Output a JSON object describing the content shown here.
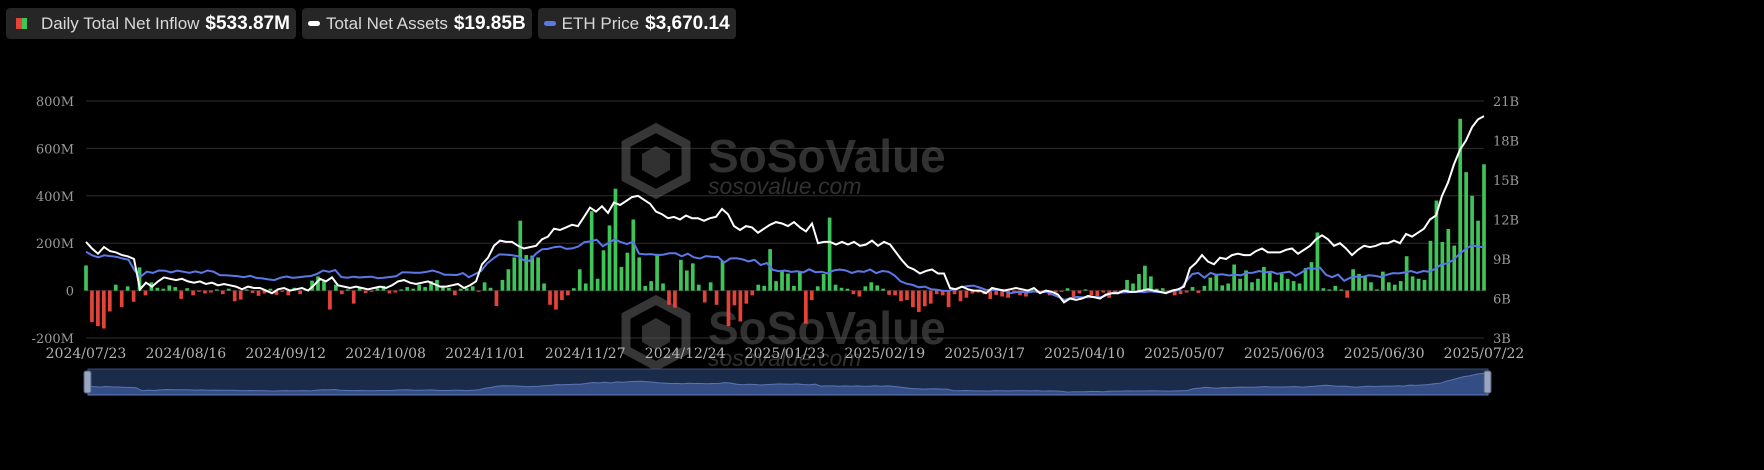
{
  "legend": [
    {
      "name": "Daily Total Net Inflow",
      "value": "$533.87M"
    },
    {
      "name": "Total Net Assets",
      "value": "$19.85B"
    },
    {
      "name": "ETH Price",
      "value": "$3,670.14"
    }
  ],
  "watermark": {
    "brand": "SoSoValue",
    "url": "sosovalue.com"
  },
  "colors": {
    "inflow_pos": "#3ec458",
    "inflow_neg": "#e5433a",
    "assets": "#ffffff",
    "price": "#5b78e6",
    "grid": "#2e2e2e",
    "navigator": "#1b2b4a"
  },
  "chart_data": {
    "type": "bar",
    "left_axis": {
      "ticks": [
        "800M",
        "600M",
        "400M",
        "200M",
        "0",
        "-200M"
      ],
      "ylim": [
        -200,
        800
      ],
      "unit": "M"
    },
    "right_axis": {
      "ticks": [
        "21B",
        "18B",
        "15B",
        "12B",
        "9B",
        "6B",
        "3B"
      ],
      "ylim": [
        3,
        21
      ],
      "unit": "B"
    },
    "x_ticks": [
      "2024/07/23",
      "2024/08/16",
      "2024/09/12",
      "2024/10/08",
      "2024/11/01",
      "2024/11/27",
      "2024/12/24",
      "2025/01/23",
      "2025/02/19",
      "2025/03/17",
      "2025/04/10",
      "2025/05/07",
      "2025/06/03",
      "2025/06/30",
      "2025/07/22"
    ],
    "grid": true,
    "series": [
      {
        "name": "Daily Total Net Inflow",
        "type": "bar",
        "unit": "M USD",
        "values": [
          106,
          -133,
          -150,
          -160,
          -88,
          25,
          -70,
          18,
          -47,
          98,
          -20,
          35,
          12,
          8,
          22,
          15,
          -35,
          10,
          -20,
          -5,
          -12,
          -8,
          5,
          -15,
          8,
          -45,
          -38,
          5,
          -10,
          -22,
          -12,
          8,
          -18,
          -5,
          -20,
          12,
          -15,
          5,
          42,
          60,
          40,
          -80,
          25,
          -15,
          5,
          -55,
          12,
          -10,
          -5,
          10,
          20,
          -12,
          -8,
          5,
          15,
          8,
          25,
          15,
          40,
          45,
          20,
          12,
          -20,
          8,
          10,
          18,
          -5,
          35,
          12,
          -65,
          45,
          90,
          140,
          295,
          150,
          148,
          140,
          30,
          -60,
          -80,
          -40,
          -20,
          10,
          90,
          30,
          335,
          50,
          170,
          275,
          430,
          100,
          160,
          300,
          140,
          20,
          40,
          155,
          30,
          -60,
          -72,
          130,
          85,
          115,
          25,
          -50,
          35,
          -60,
          125,
          -150,
          -62,
          -130,
          -55,
          -20,
          25,
          20,
          175,
          40,
          85,
          72,
          20,
          80,
          -140,
          -40,
          18,
          70,
          308,
          25,
          12,
          8,
          -15,
          -25,
          18,
          35,
          22,
          8,
          -18,
          -20,
          -45,
          -40,
          -70,
          -90,
          -66,
          -55,
          -15,
          -20,
          -70,
          -15,
          -45,
          -30,
          -12,
          -8,
          -15,
          -35,
          -18,
          -25,
          -30,
          -12,
          -20,
          -25,
          5,
          -10,
          -8,
          -20,
          -8,
          -5,
          10,
          -30,
          -12,
          5,
          -20,
          -25,
          -8,
          -30,
          -10,
          -12,
          45,
          30,
          70,
          105,
          60,
          8,
          10,
          -8,
          -20,
          -15,
          -8,
          15,
          -10,
          20,
          55,
          70,
          22,
          30,
          110,
          50,
          85,
          35,
          50,
          100,
          75,
          35,
          70,
          50,
          40,
          30,
          95,
          120,
          245,
          10,
          5,
          20,
          5,
          -30,
          90,
          70,
          60,
          35,
          5,
          80,
          35,
          25,
          40,
          145,
          60,
          50,
          45,
          210,
          380,
          205,
          260,
          190,
          725,
          500,
          400,
          295,
          533
        ]
      },
      {
        "name": "Total Net Assets",
        "type": "line",
        "unit": "B USD",
        "values": [
          10.3,
          9.8,
          9.4,
          9.9,
          9.6,
          9.5,
          9.3,
          9.2,
          9.0,
          6.7,
          7.2,
          6.9,
          7.3,
          7.6,
          7.5,
          7.4,
          7.5,
          7.3,
          7.2,
          7.3,
          7.1,
          7.2,
          7.0,
          7.1,
          7.0,
          6.9,
          6.7,
          6.9,
          6.8,
          6.8,
          6.6,
          6.4,
          6.7,
          6.8,
          6.6,
          6.7,
          6.8,
          6.6,
          7.0,
          7.5,
          7.3,
          7.6,
          7.0,
          6.9,
          6.8,
          6.9,
          6.8,
          6.7,
          6.8,
          6.9,
          6.8,
          7.0,
          7.3,
          7.4,
          7.2,
          7.1,
          7.2,
          7.3,
          7.1,
          6.9,
          6.9,
          7.0,
          7.1,
          6.8,
          7.0,
          7.3,
          8.6,
          9.1,
          10.0,
          10.4,
          10.3,
          10.3,
          10.0,
          9.8,
          9.9,
          10.0,
          10.5,
          10.7,
          11.3,
          11.2,
          11.4,
          11.6,
          11.5,
          12.2,
          12.9,
          12.6,
          13.0,
          12.5,
          13.3,
          13.1,
          13.4,
          13.7,
          13.8,
          13.5,
          13.2,
          12.6,
          12.4,
          12.1,
          12.2,
          12.0,
          12.3,
          12.1,
          12.1,
          11.9,
          12.1,
          12.2,
          12.8,
          12.4,
          11.5,
          11.2,
          11.5,
          11.4,
          11.0,
          11.3,
          11.6,
          11.8,
          11.7,
          11.5,
          11.8,
          11.4,
          11.1,
          11.7,
          10.2,
          10.3,
          10.3,
          10.1,
          10.3,
          10.1,
          10.3,
          10.0,
          10.1,
          10.4,
          10.0,
          10.3,
          10.1,
          9.5,
          8.9,
          8.4,
          8.2,
          7.9,
          8.1,
          8.2,
          7.9,
          7.9,
          6.8,
          6.7,
          6.9,
          6.7,
          6.6,
          6.6,
          6.4,
          6.8,
          6.7,
          6.6,
          6.7,
          6.8,
          6.7,
          6.6,
          6.8,
          6.4,
          6.6,
          6.5,
          6.3,
          5.7,
          6.0,
          5.9,
          6.0,
          6.2,
          6.1,
          6.0,
          6.3,
          6.4,
          6.4,
          6.6,
          6.5,
          6.5,
          6.6,
          6.7,
          6.6,
          6.5,
          6.4,
          6.6,
          6.7,
          6.9,
          8.3,
          8.7,
          9.3,
          8.8,
          8.6,
          9.1,
          9.0,
          9.3,
          9.4,
          9.3,
          9.3,
          9.6,
          9.8,
          9.5,
          9.5,
          9.5,
          9.7,
          9.8,
          9.4,
          9.7,
          10.0,
          10.5,
          10.8,
          10.5,
          10.0,
          10.2,
          9.8,
          9.3,
          9.7,
          10.0,
          9.9,
          10.0,
          10.2,
          10.2,
          10.4,
          10.2,
          10.9,
          10.7,
          11.0,
          11.3,
          12.0,
          12.3,
          13.8,
          14.8,
          16.2,
          17.3,
          18.0,
          19.0,
          19.6,
          19.85
        ]
      },
      {
        "name": "ETH Price",
        "type": "line",
        "unit": "USD",
        "values": [
          3480,
          3330,
          3250,
          3330,
          3300,
          3270,
          3200,
          3150,
          2700,
          2450,
          2650,
          2600,
          2700,
          2690,
          2620,
          2690,
          2650,
          2600,
          2660,
          2600,
          2700,
          2650,
          2510,
          2500,
          2480,
          2460,
          2420,
          2480,
          2390,
          2370,
          2330,
          2300,
          2400,
          2450,
          2390,
          2420,
          2450,
          2470,
          2560,
          2700,
          2640,
          2720,
          2430,
          2400,
          2440,
          2410,
          2430,
          2440,
          2380,
          2400,
          2430,
          2460,
          2620,
          2620,
          2610,
          2610,
          2640,
          2700,
          2630,
          2520,
          2520,
          2510,
          2590,
          2420,
          2550,
          2680,
          3000,
          3200,
          3370,
          3360,
          3340,
          3300,
          3130,
          3100,
          3400,
          3580,
          3600,
          3670,
          3700,
          3600,
          3620,
          3700,
          3880,
          3910,
          3980,
          3710,
          3850,
          4000,
          3880,
          3800,
          3900,
          3400,
          3370,
          3380,
          3340,
          3360,
          3420,
          3420,
          3290,
          3400,
          3250,
          3200,
          3300,
          3270,
          3260,
          3030,
          3200,
          3210,
          3160,
          3080,
          3140,
          2930,
          3010,
          2730,
          2670,
          2700,
          2640,
          2670,
          2620,
          2750,
          2630,
          2650,
          2580,
          2700,
          2740,
          2700,
          2600,
          2670,
          2640,
          2740,
          2590,
          2680,
          2650,
          2500,
          2250,
          2150,
          2100,
          2000,
          2030,
          1920,
          1900,
          1850,
          1860,
          1930,
          2010,
          2050,
          2070,
          1990,
          1900,
          1890,
          1900,
          1880,
          1750,
          1800,
          1810,
          1790,
          1830,
          1800,
          1810,
          1700,
          1600,
          1470,
          1550,
          1600,
          1580,
          1590,
          1600,
          1590,
          1680,
          1780,
          1780,
          1790,
          1800,
          1820,
          1800,
          1830,
          1810,
          1800,
          1790,
          1850,
          1900,
          2250,
          2550,
          2600,
          2400,
          2600,
          2520,
          2540,
          2490,
          2520,
          2500,
          2600,
          2610,
          2680,
          2620,
          2650,
          2560,
          2610,
          2650,
          2480,
          2620,
          2790,
          2770,
          2820,
          2520,
          2420,
          2530,
          2270,
          2400,
          2450,
          2430,
          2500,
          2480,
          2430,
          2520,
          2590,
          2580,
          2620,
          2680,
          2600,
          2680,
          2650,
          2780,
          2950,
          3000,
          3150,
          3400,
          3600,
          3750,
          3700,
          3670
        ]
      }
    ]
  }
}
